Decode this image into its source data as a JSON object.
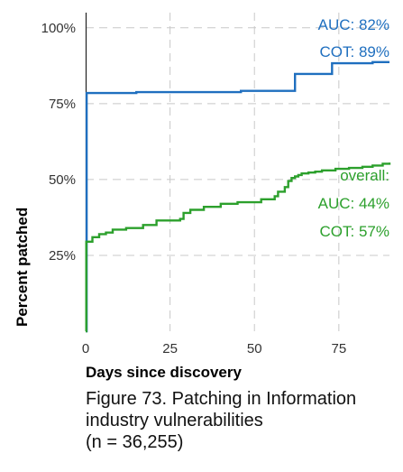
{
  "caption": {
    "line1": "Figure 73. Patching in Information",
    "line2": "industry vulnerabilities",
    "line3": "(n = 36,255)"
  },
  "chart_data": {
    "type": "line",
    "xlabel": "Days since discovery",
    "ylabel": "Percent patched",
    "xlim": [
      0,
      90
    ],
    "ylim": [
      0,
      105
    ],
    "xticks": [
      0,
      25,
      50,
      75
    ],
    "xtick_labels": [
      "0",
      "25",
      "50",
      "75"
    ],
    "yticks": [
      25,
      50,
      75,
      100
    ],
    "ytick_labels": [
      "25%",
      "50%",
      "75%",
      "100%"
    ],
    "grid": "dashed",
    "series": [
      {
        "color": "#1f6fbf",
        "x": [
          0,
          0.3,
          15,
          46,
          62,
          62,
          73,
          73,
          85,
          90
        ],
        "y": [
          0,
          78.5,
          78.8,
          79.2,
          79.3,
          84.8,
          85.0,
          88.3,
          88.7,
          88.7
        ]
      },
      {
        "color": "#2ca02c",
        "x": [
          0,
          0.2,
          2,
          4,
          6,
          8,
          12,
          17,
          21,
          28,
          29,
          31,
          35,
          40,
          45,
          52,
          56,
          57,
          59,
          60,
          61,
          62,
          63,
          64,
          66,
          68,
          70,
          74,
          78,
          82,
          85,
          88,
          90
        ],
        "y": [
          0,
          29.5,
          31.0,
          32.0,
          32.5,
          33.5,
          34.0,
          35.0,
          36.5,
          37.0,
          39.0,
          40.0,
          41.0,
          42.0,
          42.5,
          43.5,
          44.5,
          46.0,
          47.5,
          49.5,
          50.5,
          51.0,
          51.5,
          52.0,
          52.3,
          52.6,
          53.0,
          53.5,
          53.8,
          54.2,
          54.6,
          55.2,
          55.6
        ]
      }
    ],
    "annotations": [
      {
        "text": "AUC: 82%",
        "color": "#1f6fbf"
      },
      {
        "text": "COT: 89%",
        "color": "#1f6fbf"
      },
      {
        "text": "overall:",
        "color": "#2ca02c"
      },
      {
        "text": "AUC: 44%",
        "color": "#2ca02c"
      },
      {
        "text": "COT: 57%",
        "color": "#2ca02c"
      }
    ]
  }
}
